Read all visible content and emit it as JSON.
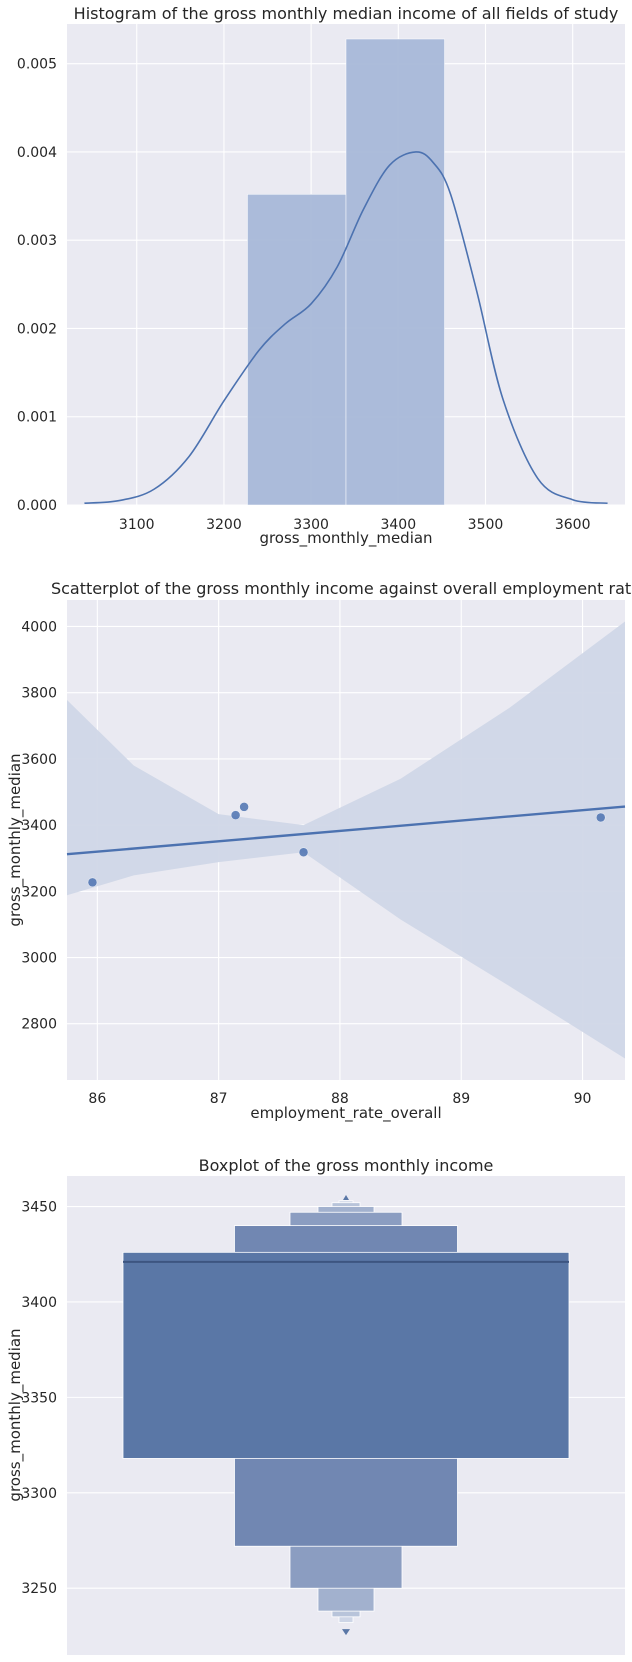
{
  "colors": {
    "panel_bg": "#eaeaf2",
    "grid": "#ffffff",
    "series": "#4c72b0",
    "hist_fill": "#a8b8d8",
    "ci_band": "#d0d7e7",
    "box_main": "#5a77a6",
    "box_level2": "#7187b2",
    "box_level3": "#8b9dc1",
    "box_level4": "#a2b1ce",
    "box_level5": "#b8c4da",
    "box_level6": "#cdd5e6"
  },
  "chart_data": [
    {
      "type": "histogram",
      "title": "Histogram of the gross monthly median income of all fields of study",
      "xlabel": "gross_monthly_median",
      "ylabel": "",
      "xlim": [
        3020,
        3660
      ],
      "ylim": [
        0,
        0.00545
      ],
      "xticks": [
        3100,
        3200,
        3300,
        3400,
        3500,
        3600
      ],
      "yticks": [
        0.0,
        0.001,
        0.002,
        0.003,
        0.004,
        0.005
      ],
      "ytick_labels": [
        "0.000",
        "0.001",
        "0.002",
        "0.003",
        "0.004",
        "0.005"
      ],
      "bins": [
        {
          "x0": 3227,
          "x1": 3340,
          "density": 0.00352
        },
        {
          "x0": 3340,
          "x1": 3453,
          "density": 0.00528
        }
      ],
      "kde": {
        "x": [
          3040,
          3080,
          3120,
          3160,
          3200,
          3240,
          3270,
          3300,
          3330,
          3360,
          3390,
          3420,
          3440,
          3460,
          3490,
          3520,
          3560,
          3600,
          3640
        ],
        "y": [
          2e-05,
          5e-05,
          0.00018,
          0.00055,
          0.00118,
          0.00175,
          0.00205,
          0.00228,
          0.0027,
          0.00335,
          0.00385,
          0.004,
          0.00388,
          0.00352,
          0.00242,
          0.0012,
          0.0003,
          6e-05,
          2e-05
        ]
      },
      "grid": true
    },
    {
      "type": "scatter",
      "title": "Scatterplot of the gross monthly income against overall employment rate",
      "xlabel": "employment_rate_overall",
      "ylabel": "gross_monthly_median",
      "xlim": [
        85.75,
        90.35
      ],
      "ylim": [
        2630,
        4080
      ],
      "xticks": [
        86,
        87,
        88,
        89,
        90
      ],
      "yticks": [
        2800,
        3000,
        3200,
        3400,
        3600,
        3800,
        4000
      ],
      "points": [
        {
          "x": 85.96,
          "y": 3227
        },
        {
          "x": 87.14,
          "y": 3430
        },
        {
          "x": 87.21,
          "y": 3455
        },
        {
          "x": 87.7,
          "y": 3318
        },
        {
          "x": 90.15,
          "y": 3423
        }
      ],
      "regression": {
        "x": [
          85.75,
          90.35
        ],
        "y": [
          3312,
          3456
        ]
      },
      "ci_band": {
        "x": [
          85.75,
          86.3,
          87.0,
          87.7,
          88.5,
          89.4,
          90.35
        ],
        "upper": [
          3778,
          3580,
          3433,
          3400,
          3540,
          3755,
          4015
        ],
        "lower": [
          3188,
          3248,
          3288,
          3318,
          3115,
          2913,
          2695
        ]
      },
      "grid": true
    },
    {
      "type": "boxplot",
      "subtype": "boxen",
      "title": "Boxplot of the gross monthly income",
      "xlabel": "",
      "ylabel": "gross_monthly_median",
      "ylim": [
        3215,
        3466
      ],
      "yticks": [
        3250,
        3300,
        3350,
        3400,
        3450
      ],
      "median": 3421,
      "levels": [
        {
          "low": 3318,
          "high": 3426
        },
        {
          "low": 3272,
          "high": 3440
        },
        {
          "low": 3250,
          "high": 3447
        },
        {
          "low": 3238,
          "high": 3450
        },
        {
          "low": 3235,
          "high": 3452
        },
        {
          "low": 3232,
          "high": 3453
        }
      ],
      "outliers": [
        3227,
        3455
      ],
      "grid": true
    }
  ]
}
